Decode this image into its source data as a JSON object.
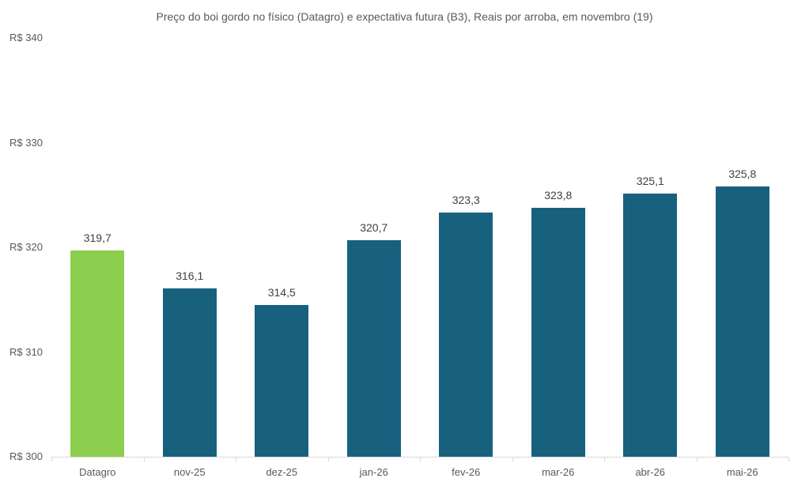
{
  "chart_data": {
    "type": "bar",
    "title": "Preço do boi gordo no físico (Datagro)  e expectativa futura (B3), Reais por arroba, em novembro (19)",
    "categories": [
      "Datagro",
      "nov-25",
      "dez-25",
      "jan-26",
      "fev-26",
      "mar-26",
      "abr-26",
      "mai-26"
    ],
    "values": [
      319.7,
      316.1,
      314.5,
      320.7,
      323.3,
      323.8,
      325.1,
      325.8
    ],
    "value_labels": [
      "319,7",
      "316,1",
      "314,5",
      "320,7",
      "323,3",
      "323,8",
      "325,1",
      "325,8"
    ],
    "bar_colors": [
      "#8dce4f",
      "#17617f",
      "#17617f",
      "#17617f",
      "#17617f",
      "#17617f",
      "#17617f",
      "#17617f"
    ],
    "highlight_series": {
      "name": "Datagro (físico)",
      "color": "#8dce4f"
    },
    "future_series": {
      "name": "Expectativa futura (B3)",
      "color": "#17617f"
    },
    "xlabel": "",
    "ylabel": "",
    "ylim": [
      300,
      340
    ],
    "y_ticks": [
      {
        "value": 300,
        "label": "R$ 300"
      },
      {
        "value": 310,
        "label": "R$ 310"
      },
      {
        "value": 320,
        "label": "R$ 320"
      },
      {
        "value": 330,
        "label": "R$ 330"
      },
      {
        "value": 340,
        "label": "R$ 340"
      }
    ],
    "grid": false,
    "legend_position": "none",
    "axis_color": "#d9d9d9",
    "label_color": "#404040",
    "tick_label_color": "#595959"
  }
}
